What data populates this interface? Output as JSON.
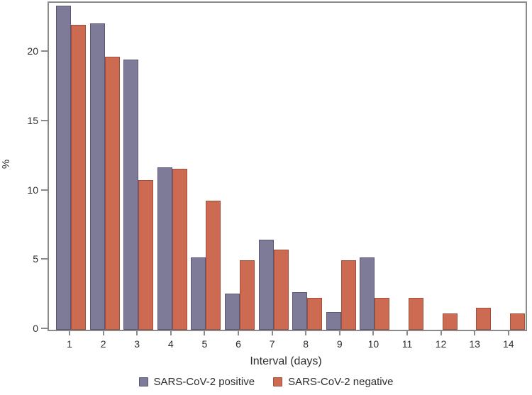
{
  "chart_data": {
    "type": "bar",
    "title": "",
    "xlabel": "Interval (days)",
    "ylabel": "%",
    "categories": [
      "1",
      "2",
      "3",
      "4",
      "5",
      "6",
      "7",
      "8",
      "9",
      "10",
      "11",
      "12",
      "13",
      "14"
    ],
    "series": [
      {
        "name": "SARS-CoV-2 positive",
        "color": "#7e7b99",
        "border_color": "#5a5677",
        "values": [
          23.4,
          22.1,
          19.5,
          11.7,
          5.2,
          2.6,
          6.5,
          2.7,
          1.3,
          5.2,
          null,
          null,
          null,
          null
        ]
      },
      {
        "name": "SARS-CoV-2 negative",
        "color": "#cd6a52",
        "border_color": "#a04f3c",
        "values": [
          22.0,
          19.7,
          10.8,
          11.6,
          9.3,
          5.0,
          5.8,
          2.3,
          5.0,
          2.3,
          2.3,
          1.2,
          1.6,
          1.2
        ]
      }
    ],
    "ylim": [
      0,
      23.6
    ],
    "yticks": [
      0,
      5,
      10,
      15,
      20
    ],
    "grid": false,
    "legend_position": "bottom",
    "frame_color": "#8a8a8a",
    "tick_label_color": "#2e2e2e"
  }
}
